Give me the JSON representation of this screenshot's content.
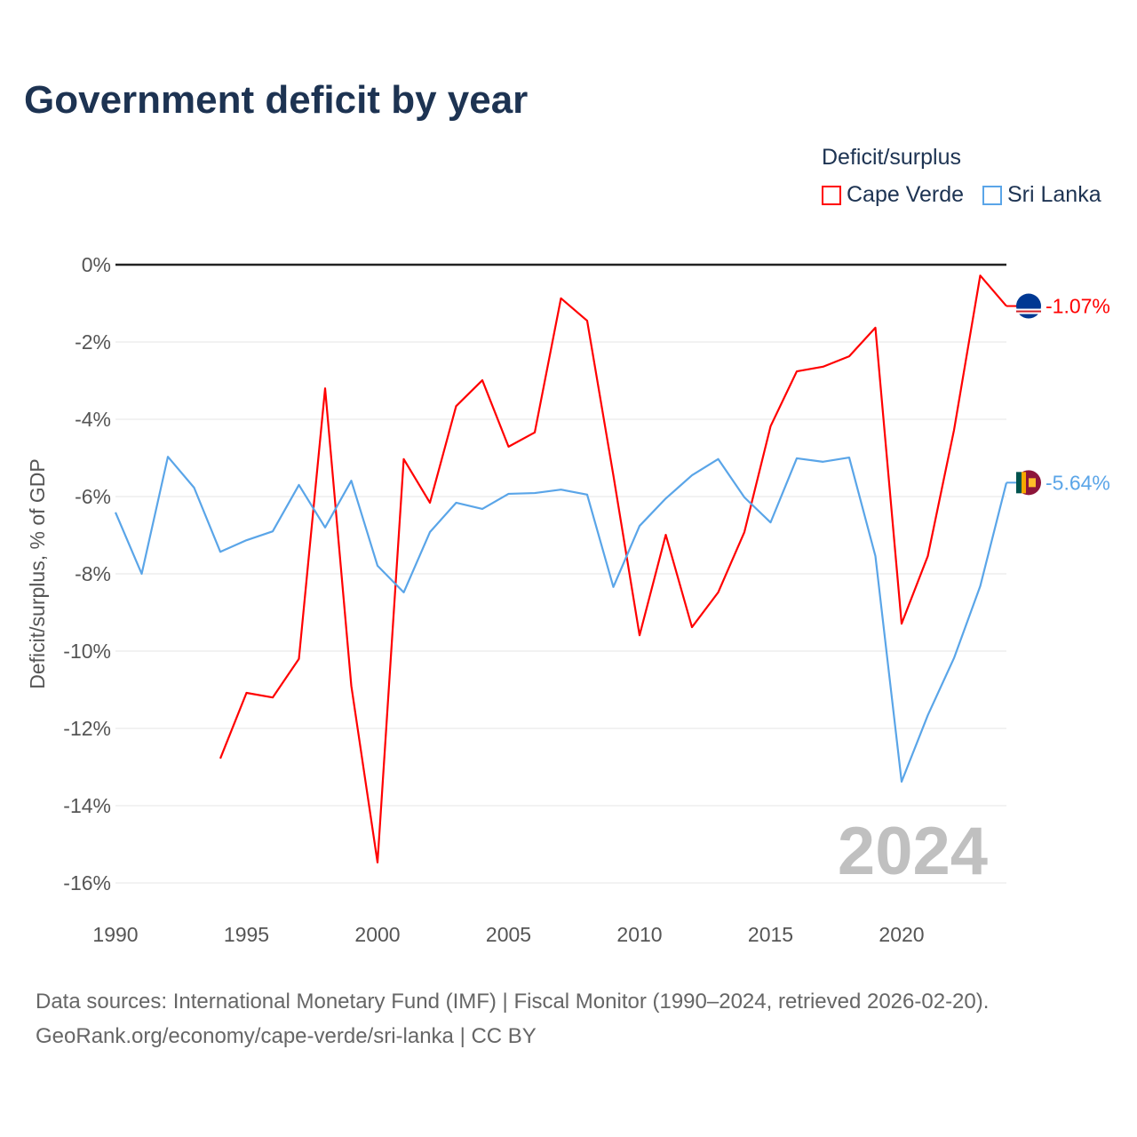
{
  "header": {
    "title": "Government deficit by year"
  },
  "legend": {
    "title": "Deficit/surplus",
    "items": [
      {
        "label": "Cape Verde",
        "color": "#ff0000"
      },
      {
        "label": "Sri Lanka",
        "color": "#5aa5e8"
      }
    ]
  },
  "watermark_year": "2024",
  "footer": {
    "line1": "Data sources: International Monetary Fund (IMF) | Fiscal Monitor (1990–2024, retrieved 2026-02-20).",
    "line2": "GeoRank.org/economy/cape-verde/sri-lanka | CC BY"
  },
  "chart_data": {
    "type": "line",
    "title": "Government deficit by year",
    "xlabel": "",
    "ylabel": "Deficit/surplus, % of GDP",
    "xlim": [
      1990,
      2024
    ],
    "ylim": [
      -16,
      0
    ],
    "x_ticks": [
      1990,
      1995,
      2000,
      2005,
      2010,
      2015,
      2020
    ],
    "y_ticks": [
      0,
      -2,
      -4,
      -6,
      -8,
      -10,
      -12,
      -14,
      -16
    ],
    "y_tick_labels": [
      "0%",
      "-2%",
      "-4%",
      "-6%",
      "-8%",
      "-10%",
      "-12%",
      "-14%",
      "-16%"
    ],
    "grid": true,
    "legend_position": "top-right",
    "series": [
      {
        "name": "Cape Verde",
        "color": "#ff0000",
        "end_label": "-1.07%",
        "x": [
          1994,
          1995,
          1996,
          1997,
          1998,
          1999,
          2000,
          2001,
          2002,
          2003,
          2004,
          2005,
          2006,
          2007,
          2008,
          2009,
          2010,
          2011,
          2012,
          2013,
          2014,
          2015,
          2016,
          2017,
          2018,
          2019,
          2020,
          2021,
          2022,
          2023,
          2024
        ],
        "values": [
          -12.78,
          -11.08,
          -11.2,
          -10.2,
          -3.2,
          -10.9,
          -15.47,
          -5.03,
          -6.16,
          -3.66,
          -2.99,
          -4.71,
          -4.34,
          -0.87,
          -1.45,
          -5.45,
          -9.59,
          -6.99,
          -9.38,
          -8.48,
          -6.92,
          -4.18,
          -2.76,
          -2.64,
          -2.37,
          -1.63,
          -9.29,
          -7.54,
          -4.28,
          -0.28,
          -1.07
        ]
      },
      {
        "name": "Sri Lanka",
        "color": "#5aa5e8",
        "end_label": "-5.64%",
        "x": [
          1990,
          1991,
          1992,
          1993,
          1994,
          1995,
          1996,
          1997,
          1998,
          1999,
          2000,
          2001,
          2002,
          2003,
          2004,
          2005,
          2006,
          2007,
          2008,
          2009,
          2010,
          2011,
          2012,
          2013,
          2014,
          2015,
          2016,
          2017,
          2018,
          2019,
          2020,
          2021,
          2022,
          2023,
          2024
        ],
        "values": [
          -6.41,
          -8.0,
          -4.97,
          -5.77,
          -7.43,
          -7.13,
          -6.9,
          -5.7,
          -6.8,
          -5.59,
          -7.79,
          -8.48,
          -6.92,
          -6.16,
          -6.32,
          -5.93,
          -5.91,
          -5.82,
          -5.95,
          -8.34,
          -6.76,
          -6.05,
          -5.45,
          -5.03,
          -6.02,
          -6.67,
          -5.01,
          -5.1,
          -4.99,
          -7.54,
          -13.38,
          -11.66,
          -10.18,
          -8.32,
          -5.64
        ]
      }
    ]
  }
}
